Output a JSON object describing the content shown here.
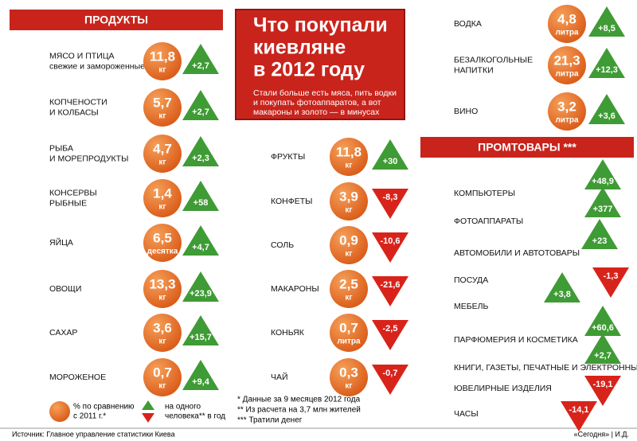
{
  "header": {
    "title_lines": [
      "Что покупали",
      "киевляне",
      "в 2012 году"
    ],
    "subtitle_lines": [
      "Стали больше есть мяса, пить водки",
      "и покупать фотоаппаратов, а вот",
      "макароны и золото — в минусах"
    ]
  },
  "food": {
    "title": "ПРОДУКТЫ",
    "items": [
      {
        "name": [
          "МЯСО И ПТИЦА"
        ],
        "note": "свежие и замороженные",
        "amount": "11,8",
        "unit": "кг",
        "change": "+2,7"
      },
      {
        "name": [
          "КОПЧЕНОСТИ",
          "И КОЛБАСЫ"
        ],
        "amount": "5,7",
        "unit": "кг",
        "change": "+2,7"
      },
      {
        "name": [
          "РЫБА",
          "И МОРЕПРОДУКТЫ"
        ],
        "amount": "4,7",
        "unit": "кг",
        "change": "+2,3"
      },
      {
        "name": [
          "КОНСЕРВЫ",
          "РЫБНЫЕ"
        ],
        "amount": "1,4",
        "unit": "кг",
        "change": "+58"
      },
      {
        "name": [
          "ЯЙЦА"
        ],
        "amount": "6,5",
        "unit": "десятка",
        "change": "+4,7"
      },
      {
        "name": [
          "ОВОЩИ"
        ],
        "amount": "13,3",
        "unit": "кг",
        "change": "+23,9"
      },
      {
        "name": [
          "САХАР"
        ],
        "amount": "3,6",
        "unit": "кг",
        "change": "+15,7"
      },
      {
        "name": [
          "МОРОЖЕНОЕ"
        ],
        "amount": "0,7",
        "unit": "кг",
        "change": "+9,4"
      },
      {
        "name": [
          "ФРУКТЫ"
        ],
        "amount": "11,8",
        "unit": "кг",
        "change": "+30"
      },
      {
        "name": [
          "КОНФЕТЫ"
        ],
        "amount": "3,9",
        "unit": "кг",
        "change": "-8,3"
      },
      {
        "name": [
          "СОЛЬ"
        ],
        "amount": "0,9",
        "unit": "кг",
        "change": "-10,6"
      },
      {
        "name": [
          "МАКАРОНЫ"
        ],
        "amount": "2,5",
        "unit": "кг",
        "change": "-21,6"
      },
      {
        "name": [
          "КОНЬЯК"
        ],
        "amount": "0,7",
        "unit": "литра",
        "change": "-2,5"
      },
      {
        "name": [
          "ЧАЙ"
        ],
        "amount": "0,3",
        "unit": "кг",
        "change": "-0,7"
      },
      {
        "name": [
          "ВОДКА"
        ],
        "amount": "4,8",
        "unit": "литра",
        "change": "+8,5"
      },
      {
        "name": [
          "БЕЗАЛКОГОЛЬНЫЕ",
          "НАПИТКИ"
        ],
        "amount": "21,3",
        "unit": "литра",
        "change": "+12,3"
      },
      {
        "name": [
          "ВИНО"
        ],
        "amount": "3,2",
        "unit": "литра",
        "change": "+3,6"
      }
    ]
  },
  "goods": {
    "title": "ПРОМТОВАРЫ ***",
    "items": [
      {
        "name": "КОМПЬЮТЕРЫ",
        "change": "+48,9"
      },
      {
        "name": "ФОТОАППАРАТЫ",
        "change": "+377"
      },
      {
        "name": "АВТОМОБИЛИ И АВТОТОВАРЫ",
        "change": "+23"
      },
      {
        "name": "ПОСУДА",
        "change": "-1,3"
      },
      {
        "name": "МЕБЕЛЬ",
        "change": "+3,8"
      },
      {
        "name": "ПАРФЮМЕРИЯ И КОСМЕТИКА",
        "change": "+60,6"
      },
      {
        "name": "КНИГИ, ГАЗЕТЫ, ПЕЧАТНЫЕ  И ЭЛЕКТРОННЫЕ",
        "change": "+2,7"
      },
      {
        "name": "ЮВЕЛИРНЫЕ ИЗДЕЛИЯ",
        "change": "-19,1"
      },
      {
        "name": "ЧАСЫ",
        "change": "-14,1"
      }
    ]
  },
  "legend": {
    "amount_lines": [
      "% по сравнению",
      "с 2011 г.*"
    ],
    "change_lines": [
      "на одного",
      "человека** в год"
    ]
  },
  "footnotes": [
    "* Данные за 9 месяцев 2012 года",
    "** Из расчета на 3,7 млн жителей",
    "*** Тратили денег"
  ],
  "source": "Источник:  Главное управление статистики Киева",
  "credit": "«Сегодня» | И.Д."
}
